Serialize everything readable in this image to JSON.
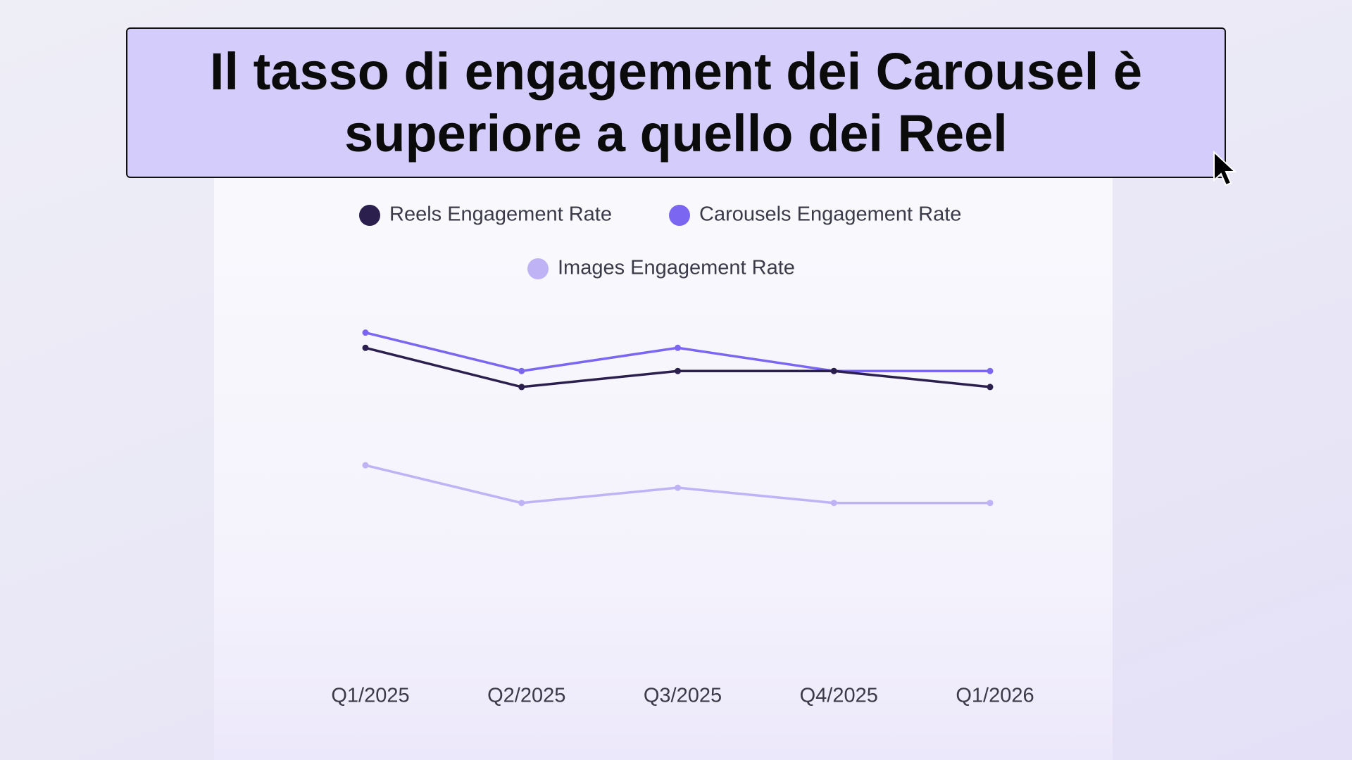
{
  "chart_data": {
    "type": "line",
    "title": "Il tasso di engagement dei Carousel è superiore a quello dei Reel",
    "categories": [
      "Q1/2025",
      "Q2/2025",
      "Q3/2025",
      "Q4/2025",
      "Q1/2026"
    ],
    "series": [
      {
        "name": "Reels Engagement Rate",
        "color": "#2a1f4d",
        "values": [
          4.24,
          3.7,
          3.92,
          3.92,
          3.7
        ]
      },
      {
        "name": "Carousels Engagement Rate",
        "color": "#7a66f0",
        "values": [
          4.45,
          3.92,
          4.24,
          3.92,
          3.92
        ]
      },
      {
        "name": "Images Engagement Rate",
        "color": "#bfb3f5",
        "values": [
          2.62,
          2.1,
          2.31,
          2.1,
          2.1
        ]
      }
    ],
    "ylim": [
      0,
      5
    ]
  }
}
